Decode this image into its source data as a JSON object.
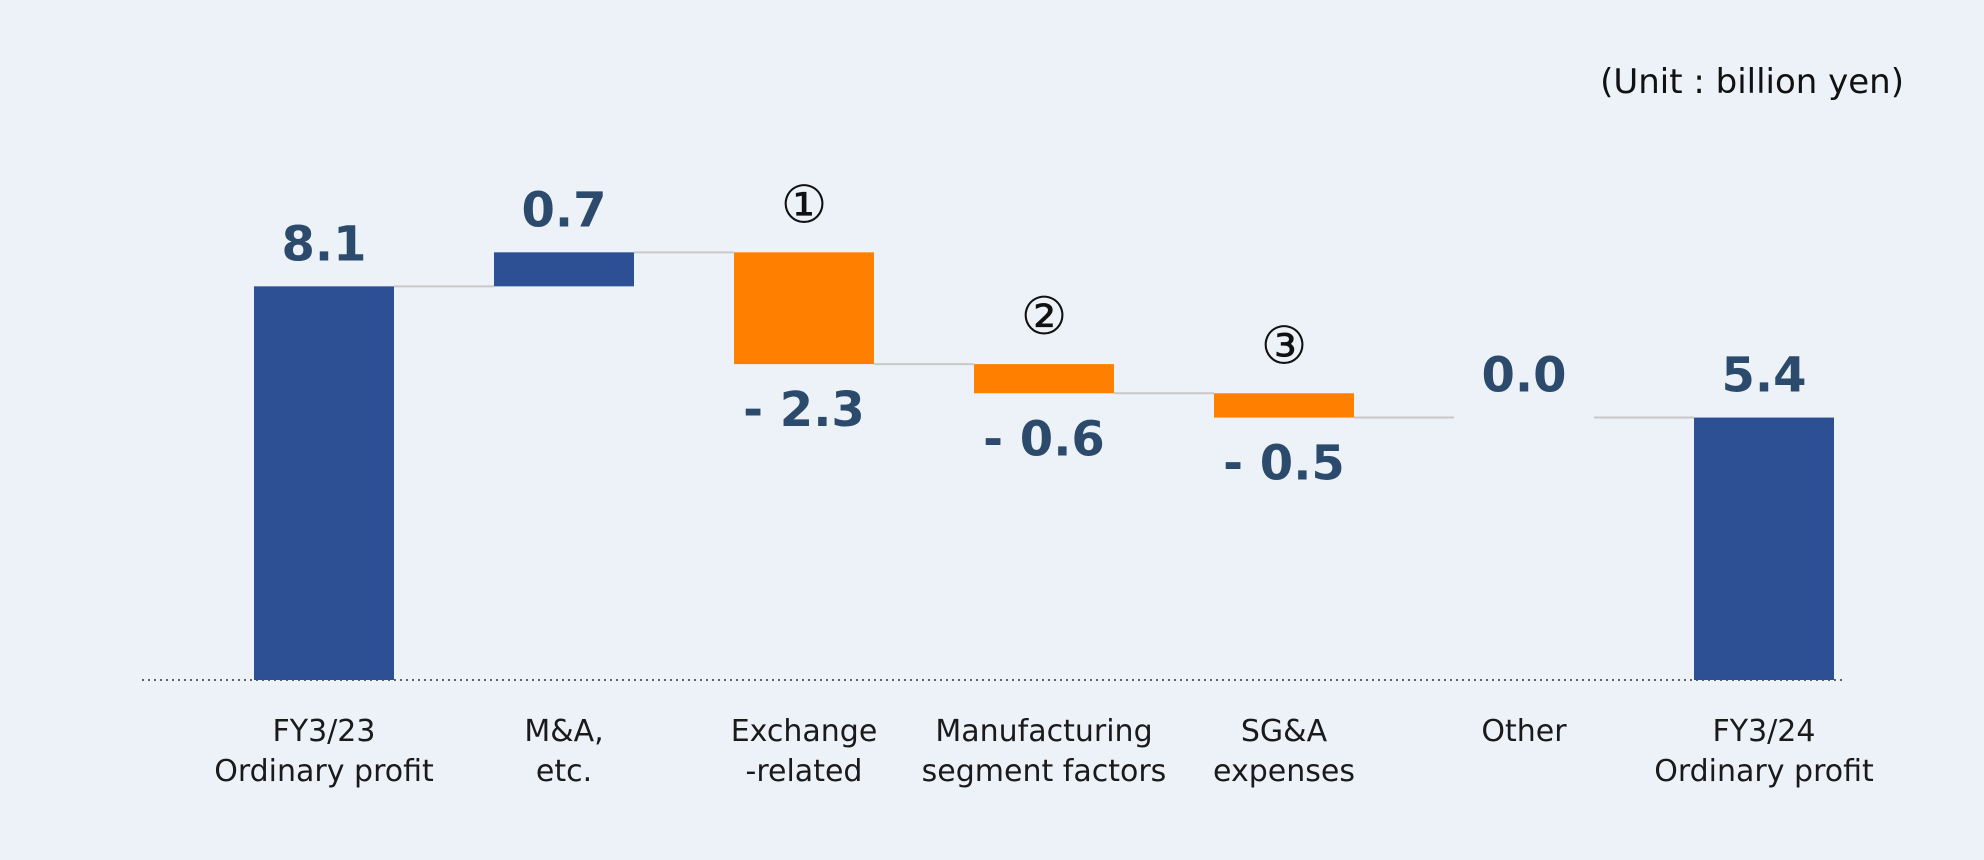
{
  "unit_label": "(Unit : billion yen)",
  "colors": {
    "total": "#2d5095",
    "increase": "#2d5095",
    "decrease": "#ff8000",
    "value_text": "#2c4a6b",
    "connector": "#c8c8c8",
    "baseline": "#333333",
    "background": "#edf2f9"
  },
  "chart_data": {
    "type": "waterfall",
    "title": "",
    "unit": "billion yen",
    "ylim": [
      0,
      10
    ],
    "steps": [
      {
        "label_lines": [
          "FY3/23",
          "Ordinary profit"
        ],
        "kind": "total",
        "value": 8.1,
        "display": "8.1",
        "marker": ""
      },
      {
        "label_lines": [
          "M&A,",
          "etc."
        ],
        "kind": "delta",
        "value": 0.7,
        "display": "0.7",
        "marker": ""
      },
      {
        "label_lines": [
          "Exchange",
          "-related"
        ],
        "kind": "delta",
        "value": -2.3,
        "display": "- 2.3",
        "marker": "①"
      },
      {
        "label_lines": [
          "Manufacturing",
          "segment factors"
        ],
        "kind": "delta",
        "value": -0.6,
        "display": "- 0.6",
        "marker": "②"
      },
      {
        "label_lines": [
          "SG&A",
          "expenses"
        ],
        "kind": "delta",
        "value": -0.5,
        "display": "- 0.5",
        "marker": "③"
      },
      {
        "label_lines": [
          "Other"
        ],
        "kind": "delta",
        "value": 0.0,
        "display": "0.0",
        "marker": ""
      },
      {
        "label_lines": [
          "FY3/24",
          "Ordinary profit"
        ],
        "kind": "total",
        "value": 5.4,
        "display": "5.4",
        "marker": ""
      }
    ]
  }
}
